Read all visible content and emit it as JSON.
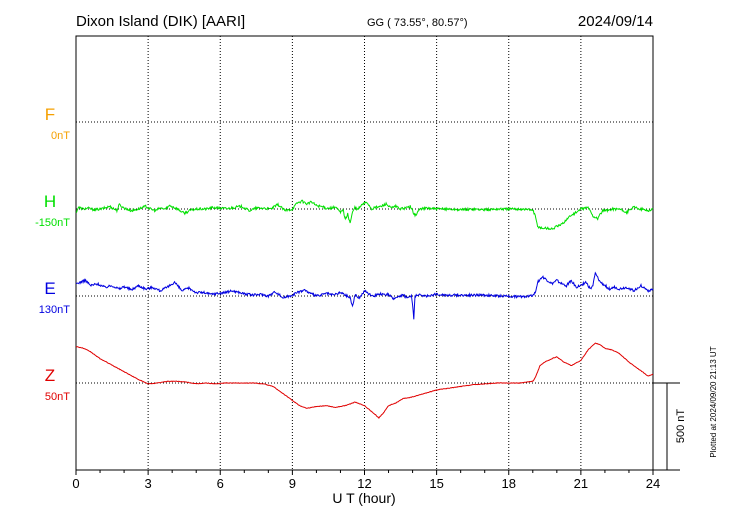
{
  "header": {
    "station": "Dixon Island (DIK)  [AARI]",
    "coords": "GG ( 73.55°,  80.57°)",
    "date": "2024/09/14"
  },
  "plotted_stamp": "Plotted at 2024/09/20 21:13 UT",
  "scale_label": "500 nT",
  "colors": {
    "F": "#f5a000",
    "H": "#00e000",
    "E": "#0000e0",
    "Z": "#e00000",
    "axis": "#000000"
  },
  "chart_data": {
    "type": "line",
    "xlabel": "U T (hour)",
    "xlim": [
      0,
      24
    ],
    "x_ticks": [
      "0",
      "3",
      "6",
      "9",
      "12",
      "15",
      "18",
      "21",
      "24"
    ],
    "scale_nT": 500,
    "series": [
      {
        "name": "F",
        "baseline": "0nT",
        "x": [],
        "y": []
      },
      {
        "name": "H",
        "baseline": "-150nT",
        "x": [
          0,
          0.1,
          0.3,
          0.5,
          0.8,
          1.1,
          1.4,
          1.7,
          1.8,
          2.0,
          2.3,
          2.6,
          2.9,
          3.1,
          3.3,
          3.5,
          3.7,
          3.9,
          4.2,
          4.5,
          4.8,
          5.1,
          5.4,
          5.7,
          6.0,
          6.3,
          6.6,
          6.9,
          7.2,
          7.5,
          7.8,
          8.1,
          8.4,
          8.7,
          9.0,
          9.2,
          9.4,
          9.6,
          9.8,
          10.0,
          10.2,
          10.4,
          10.6,
          10.8,
          11.0,
          11.1,
          11.2,
          11.3,
          11.4,
          11.5,
          11.6,
          11.7,
          11.9,
          12.1,
          12.3,
          12.5,
          12.7,
          12.9,
          13.1,
          13.3,
          13.5,
          13.7,
          13.9,
          14.0,
          14.1,
          14.3,
          14.6,
          15.0,
          15.5,
          16.0,
          16.5,
          17.0,
          17.5,
          18.0,
          18.5,
          19.0,
          19.1,
          19.2,
          19.4,
          19.6,
          19.8,
          20.0,
          20.2,
          20.4,
          20.6,
          20.8,
          21.0,
          21.3,
          21.5,
          21.7,
          21.9,
          22.1,
          22.3,
          22.6,
          22.9,
          23.2,
          23.5,
          23.8,
          24.0
        ],
        "y": [
          -20,
          10,
          0,
          5,
          -5,
          2,
          15,
          -8,
          25,
          5,
          -10,
          0,
          15,
          0,
          -10,
          5,
          0,
          20,
          2,
          -25,
          -5,
          0,
          0,
          8,
          5,
          2,
          10,
          15,
          -10,
          5,
          5,
          0,
          25,
          -10,
          0,
          35,
          45,
          30,
          40,
          20,
          15,
          5,
          5,
          10,
          -20,
          0,
          -60,
          -30,
          -80,
          -20,
          10,
          -5,
          25,
          40,
          0,
          10,
          15,
          30,
          5,
          15,
          0,
          5,
          15,
          -10,
          -40,
          0,
          5,
          0,
          0,
          -5,
          0,
          -5,
          0,
          0,
          0,
          -5,
          -40,
          -100,
          -110,
          -110,
          -115,
          -100,
          -90,
          -60,
          -35,
          -20,
          0,
          10,
          -40,
          -55,
          -10,
          -10,
          0,
          0,
          -20,
          10,
          0,
          -10,
          0
        ]
      },
      {
        "name": "E",
        "baseline": "130nT",
        "x": [
          0,
          0.2,
          0.4,
          0.6,
          0.9,
          1.2,
          1.5,
          1.8,
          2.0,
          2.3,
          2.6,
          2.9,
          3.2,
          3.5,
          3.8,
          4.1,
          4.4,
          4.7,
          5.0,
          5.3,
          5.6,
          5.9,
          6.2,
          6.5,
          6.8,
          7.1,
          7.4,
          7.7,
          8.0,
          8.3,
          8.6,
          8.9,
          9.2,
          9.5,
          9.8,
          10.1,
          10.4,
          10.7,
          11.0,
          11.2,
          11.4,
          11.5,
          11.6,
          11.8,
          12.0,
          12.2,
          12.4,
          12.6,
          12.8,
          13.0,
          13.2,
          13.4,
          13.6,
          13.8,
          13.95,
          14.0,
          14.05,
          14.1,
          14.3,
          14.6,
          15.0,
          15.5,
          16.0,
          16.5,
          17.0,
          17.5,
          18.0,
          18.5,
          19.0,
          19.1,
          19.2,
          19.4,
          19.6,
          19.8,
          20.0,
          20.2,
          20.4,
          20.6,
          20.8,
          21.0,
          21.2,
          21.4,
          21.5,
          21.6,
          21.8,
          22.0,
          22.2,
          22.4,
          22.6,
          22.9,
          23.2,
          23.5,
          23.8,
          24.0
        ],
        "y": [
          70,
          80,
          90,
          60,
          70,
          50,
          60,
          40,
          55,
          35,
          60,
          40,
          50,
          30,
          50,
          80,
          30,
          45,
          20,
          20,
          10,
          15,
          20,
          30,
          20,
          10,
          5,
          10,
          0,
          25,
          -10,
          0,
          20,
          35,
          10,
          0,
          15,
          5,
          20,
          5,
          -10,
          -60,
          5,
          -10,
          30,
          10,
          0,
          15,
          5,
          10,
          -20,
          0,
          5,
          -10,
          0,
          -50,
          -130,
          0,
          5,
          0,
          10,
          5,
          5,
          5,
          5,
          0,
          0,
          -5,
          5,
          20,
          80,
          110,
          90,
          70,
          90,
          70,
          60,
          90,
          50,
          60,
          80,
          40,
          60,
          130,
          80,
          60,
          40,
          50,
          40,
          50,
          30,
          60,
          30,
          40
        ]
      },
      {
        "name": "Z",
        "baseline": "50nT",
        "x": [
          0,
          0.3,
          0.6,
          1.0,
          1.4,
          1.8,
          2.2,
          2.6,
          3.0,
          3.4,
          3.8,
          4.2,
          4.6,
          5.0,
          5.4,
          5.8,
          6.2,
          6.6,
          7.0,
          7.4,
          7.8,
          8.2,
          8.6,
          9.0,
          9.3,
          9.6,
          10.0,
          10.4,
          10.8,
          11.2,
          11.6,
          12.0,
          12.3,
          12.6,
          12.8,
          13.0,
          13.3,
          13.6,
          14.0,
          14.5,
          15.0,
          15.5,
          16.0,
          16.5,
          17.0,
          17.5,
          18.0,
          18.5,
          19.0,
          19.1,
          19.3,
          19.5,
          19.8,
          20.0,
          20.3,
          20.6,
          21.0,
          21.3,
          21.6,
          21.8,
          22.0,
          22.3,
          22.6,
          23.0,
          23.4,
          23.8,
          24.0
        ],
        "y": [
          210,
          200,
          180,
          140,
          110,
          80,
          50,
          20,
          -5,
          0,
          10,
          10,
          5,
          -5,
          0,
          -5,
          0,
          0,
          0,
          0,
          -5,
          -20,
          -60,
          -100,
          -130,
          -145,
          -135,
          -130,
          -140,
          -130,
          -110,
          -130,
          -165,
          -200,
          -170,
          -130,
          -115,
          -90,
          -80,
          -60,
          -40,
          -30,
          -20,
          -10,
          -5,
          0,
          0,
          0,
          10,
          30,
          100,
          120,
          140,
          150,
          120,
          100,
          130,
          190,
          230,
          220,
          200,
          190,
          170,
          120,
          80,
          40,
          50
        ]
      }
    ]
  }
}
